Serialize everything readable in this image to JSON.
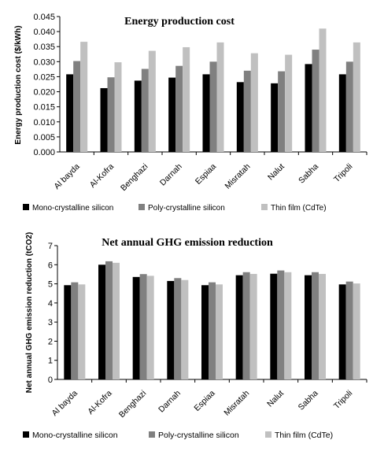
{
  "chart_data": [
    {
      "type": "bar",
      "title": "Energy production cost",
      "xlabel": "",
      "ylabel": "Energy production cost ($/kWh)",
      "ylim": [
        0,
        0.045
      ],
      "yticks": [
        "0.000",
        "0.005",
        "0.010",
        "0.015",
        "0.020",
        "0.025",
        "0.030",
        "0.035",
        "0.040",
        "0.045"
      ],
      "categories": [
        "Al bayda",
        "Al-Kofra",
        "Benghazi",
        "Darnah",
        "Espiaa",
        "Misratah",
        "Nalut",
        "Sabha",
        "Tripoli"
      ],
      "grid": false,
      "legend_position": "bottom",
      "series": [
        {
          "name": "Mono-crystalline silicon",
          "color": "#000000",
          "values": [
            0.0258,
            0.0212,
            0.0237,
            0.0247,
            0.0258,
            0.0232,
            0.0228,
            0.0292,
            0.0258
          ]
        },
        {
          "name": "Poly-crystalline silicon",
          "color": "#808080",
          "values": [
            0.0302,
            0.0248,
            0.0276,
            0.0286,
            0.03,
            0.027,
            0.0268,
            0.034,
            0.03
          ]
        },
        {
          "name": "Thin film (CdTe)",
          "color": "#c0c0c0",
          "values": [
            0.0366,
            0.0298,
            0.0336,
            0.0348,
            0.0364,
            0.0328,
            0.0323,
            0.041,
            0.0364
          ]
        }
      ]
    },
    {
      "type": "bar",
      "title": "Net annual GHG emission reduction",
      "xlabel": "",
      "ylabel": "Net annual GHG emission reduction (tCO2)",
      "ylim": [
        0,
        7
      ],
      "yticks": [
        "0",
        "1",
        "2",
        "3",
        "4",
        "5",
        "6",
        "7"
      ],
      "categories": [
        "Al bayda",
        "Al-Kofra",
        "Benghazi",
        "Darnah",
        "Espiaa",
        "Misratah",
        "Nalut",
        "Sabha",
        "Tripoli"
      ],
      "grid": false,
      "legend_position": "bottom",
      "series": [
        {
          "name": "Mono-crystalline silicon",
          "color": "#000000",
          "values": [
            4.93,
            6.0,
            5.36,
            5.15,
            4.93,
            5.45,
            5.53,
            5.45,
            4.97
          ]
        },
        {
          "name": "Poly-crystalline silicon",
          "color": "#808080",
          "values": [
            5.08,
            6.18,
            5.51,
            5.3,
            5.08,
            5.61,
            5.7,
            5.61,
            5.12
          ]
        },
        {
          "name": "Thin film (CdTe)",
          "color": "#c0c0c0",
          "values": [
            4.97,
            6.1,
            5.42,
            5.2,
            4.97,
            5.52,
            5.61,
            5.52,
            5.02
          ]
        }
      ]
    }
  ]
}
